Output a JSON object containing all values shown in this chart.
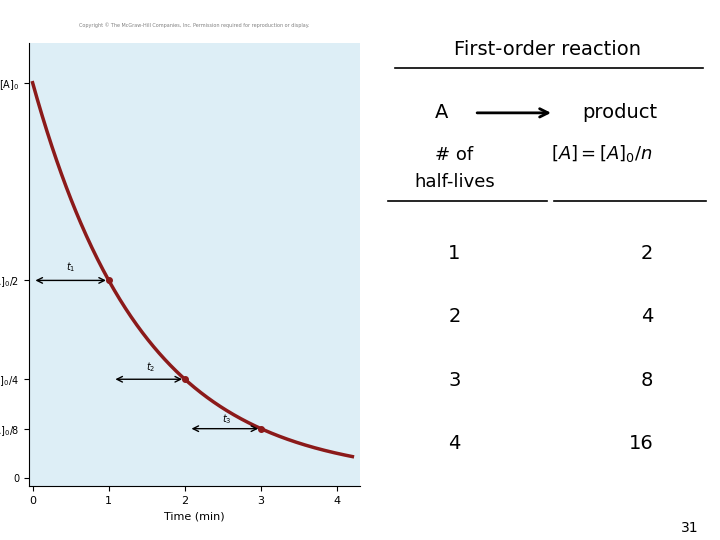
{
  "title": "First-order reaction",
  "bg_color": "#ffffff",
  "panel_bg": "#ddeef6",
  "page_number": "31",
  "copyright": "Copyright © The McGraw-Hill Companies, Inc. Permission required for reproduction or display.",
  "table_rows": [
    [
      "1",
      "2"
    ],
    [
      "2",
      "4"
    ],
    [
      "3",
      "8"
    ],
    [
      "4",
      "16"
    ]
  ],
  "curve_color": "#8b1a1a",
  "xlabel": "Time (min)",
  "ylabel": "[A]",
  "xtick_labels": [
    "0",
    "1",
    "2",
    "3",
    "4"
  ]
}
